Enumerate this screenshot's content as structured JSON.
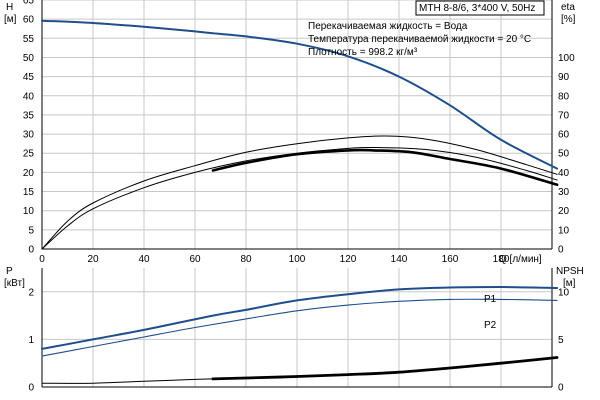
{
  "info": {
    "title": "MTH 8-8/6, 3*400 V, 50Hz",
    "lines": [
      "Перекачиваемая жидкость = Вода",
      "Температура перекачиваемой жидкости = 20 °C",
      "Плотность = 998.2 кг/м³"
    ]
  },
  "colors": {
    "head": "#1f4e8c",
    "power": "#1f4e8c",
    "efficiency": "#000000",
    "npsh": "#000000",
    "grid": "#c8c8c8"
  },
  "chart_data": [
    {
      "type": "line",
      "title": "MTH 8-8/6, 3*400 V, 50Hz",
      "xlabel": "Q [л/мин]",
      "xlim": [
        0,
        200
      ],
      "xticks": [
        0,
        20,
        40,
        60,
        80,
        100,
        120,
        140,
        160,
        180
      ],
      "left_axis": {
        "label_top": "H",
        "label_unit": "[м]",
        "ylim": [
          0,
          65
        ],
        "ticks": [
          0,
          5,
          10,
          15,
          20,
          25,
          30,
          35,
          40,
          45,
          50,
          55,
          60,
          65
        ]
      },
      "right_axis": {
        "label_top": "eta",
        "label_unit": "[%]",
        "ylim": [
          0,
          130
        ],
        "ticks": [
          0,
          10,
          20,
          30,
          40,
          50,
          60,
          70,
          80,
          90,
          100
        ]
      },
      "grid": true,
      "series": [
        {
          "axis": "left",
          "style": "head",
          "x": [
            0,
            20,
            40,
            60,
            67,
            80,
            100,
            120,
            140,
            160,
            180,
            202
          ],
          "y": [
            59.6,
            59.0,
            58.0,
            56.8,
            56.3,
            55.5,
            53.6,
            50.3,
            45.0,
            37.5,
            28.5,
            21.0
          ]
        },
        {
          "axis": "right",
          "style": "thin",
          "x": [
            0,
            10,
            20,
            40,
            60,
            80,
            100,
            120,
            135,
            150,
            170,
            190,
            202
          ],
          "y": [
            0,
            14.5,
            24,
            35.5,
            43.5,
            50.5,
            55,
            58,
            59,
            57.5,
            52,
            44,
            39
          ]
        },
        {
          "axis": "right",
          "style": "bold",
          "x": [
            67,
            80,
            100,
            120,
            130,
            145,
            160,
            180,
            202
          ],
          "y": [
            41,
            45,
            49.5,
            51.5,
            51.5,
            50.5,
            47,
            42,
            33.5
          ]
        },
        {
          "axis": "right",
          "style": "thin",
          "x": [
            0,
            10,
            20,
            40,
            60,
            80,
            100,
            120,
            130,
            150,
            170,
            190,
            202
          ],
          "y": [
            0,
            12,
            21,
            32,
            40,
            46,
            50,
            52.5,
            53,
            52,
            48,
            41,
            36
          ]
        }
      ]
    },
    {
      "type": "line",
      "xlim": [
        0,
        200
      ],
      "left_axis": {
        "label_top": "P",
        "label_unit": "[кВт]",
        "ylim": [
          0,
          2.5
        ],
        "ticks": [
          0,
          1,
          2
        ]
      },
      "right_axis": {
        "label_top": "NPSH",
        "label_unit": "[м]",
        "ylim": [
          0,
          12.5
        ],
        "ticks": [
          0,
          5,
          10
        ]
      },
      "grid": true,
      "series": [
        {
          "name": "P1",
          "axis": "left",
          "style": "power",
          "x": [
            0,
            20,
            40,
            67,
            80,
            100,
            120,
            140,
            160,
            180,
            202
          ],
          "y": [
            0.8,
            1.0,
            1.2,
            1.5,
            1.62,
            1.82,
            1.95,
            2.05,
            2.09,
            2.1,
            2.08
          ]
        },
        {
          "name": "P2",
          "axis": "left",
          "style": "power-thin",
          "x": [
            0,
            20,
            40,
            60,
            80,
            100,
            120,
            140,
            160,
            180,
            202
          ],
          "y": [
            0.65,
            0.85,
            1.05,
            1.25,
            1.43,
            1.6,
            1.72,
            1.8,
            1.84,
            1.84,
            1.82
          ]
        },
        {
          "axis": "right",
          "style": "npsh-thin",
          "x": [
            0,
            20,
            40,
            60,
            67
          ],
          "y": [
            0.4,
            0.4,
            0.6,
            0.8,
            0.85
          ]
        },
        {
          "axis": "right",
          "style": "npsh-bold",
          "x": [
            67,
            80,
            100,
            120,
            140,
            160,
            180,
            202
          ],
          "y": [
            0.85,
            0.95,
            1.1,
            1.3,
            1.55,
            2.0,
            2.5,
            3.1
          ]
        }
      ]
    }
  ]
}
